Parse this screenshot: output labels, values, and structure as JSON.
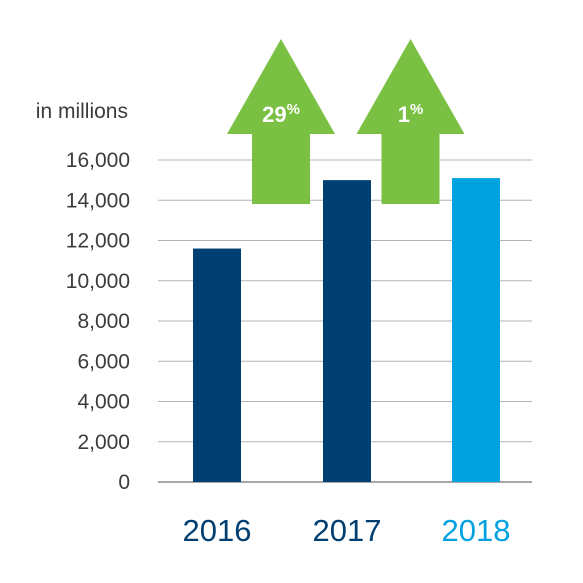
{
  "chart_data": {
    "type": "bar",
    "unit_label": "in millions",
    "categories": [
      "2016",
      "2017",
      "2018"
    ],
    "values": [
      11600,
      15000,
      15100
    ],
    "ylim": [
      0,
      16000
    ],
    "yticks": [
      0,
      2000,
      4000,
      6000,
      8000,
      10000,
      12000,
      14000,
      16000
    ],
    "ytick_labels": [
      "0",
      "2,000",
      "4,000",
      "6,000",
      "8,000",
      "10,000",
      "12,000",
      "14,000",
      "16,000"
    ],
    "grid": true,
    "bar_colors": [
      "#003f72",
      "#003f72",
      "#00a3e0"
    ],
    "category_label_colors": [
      "#003f72",
      "#003f72",
      "#00a3e0"
    ],
    "arrows": [
      {
        "value": "29",
        "unit": "%",
        "color": "#7ac143"
      },
      {
        "value": "1",
        "unit": "%",
        "color": "#7ac143"
      }
    ]
  }
}
